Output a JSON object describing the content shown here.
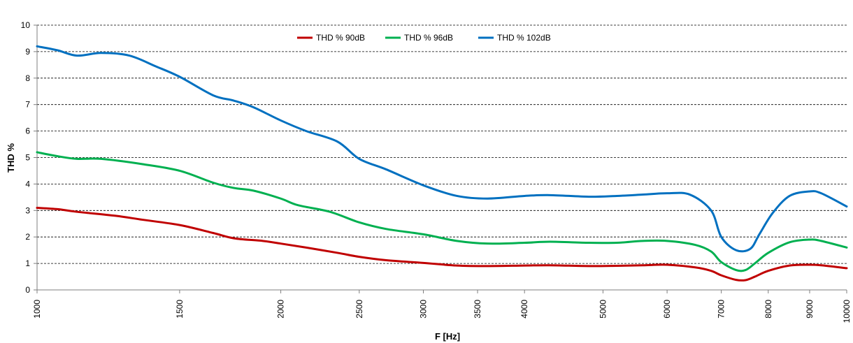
{
  "chart_data": {
    "type": "line",
    "title": "",
    "xlabel": "F [Hz]",
    "ylabel": "THD %",
    "xscale": "log",
    "xlim": [
      1000,
      10000
    ],
    "ylim": [
      0,
      10
    ],
    "grid": "horizontal dashed",
    "legend_position": "top-center",
    "x_ticks": [
      1000,
      1500,
      2000,
      2500,
      3000,
      3500,
      4000,
      5000,
      6000,
      7000,
      8000,
      9000,
      10000
    ],
    "x_tick_labels": [
      "1000",
      "1500",
      "2000",
      "2500",
      "3000",
      "3500",
      "4000",
      "5000",
      "6000",
      "7000",
      "8000",
      "9000",
      "10000"
    ],
    "y_ticks": [
      0,
      1,
      2,
      3,
      4,
      5,
      6,
      7,
      8,
      9,
      10
    ],
    "y_tick_labels": [
      "0",
      "1",
      "2",
      "3",
      "4",
      "5",
      "6",
      "7",
      "8",
      "9",
      "10"
    ],
    "series": [
      {
        "name": "THD % 90dB",
        "color": "#C00000",
        "points": [
          [
            1000,
            3.1
          ],
          [
            1060,
            3.05
          ],
          [
            1120,
            2.95
          ],
          [
            1250,
            2.8
          ],
          [
            1350,
            2.65
          ],
          [
            1500,
            2.45
          ],
          [
            1650,
            2.15
          ],
          [
            1750,
            1.95
          ],
          [
            1900,
            1.85
          ],
          [
            2000,
            1.75
          ],
          [
            2150,
            1.6
          ],
          [
            2350,
            1.4
          ],
          [
            2500,
            1.25
          ],
          [
            2700,
            1.12
          ],
          [
            3000,
            1.02
          ],
          [
            3300,
            0.92
          ],
          [
            3600,
            0.9
          ],
          [
            4000,
            0.92
          ],
          [
            4300,
            0.93
          ],
          [
            4800,
            0.9
          ],
          [
            5200,
            0.91
          ],
          [
            5600,
            0.93
          ],
          [
            6000,
            0.95
          ],
          [
            6500,
            0.85
          ],
          [
            6800,
            0.72
          ],
          [
            7000,
            0.55
          ],
          [
            7300,
            0.38
          ],
          [
            7500,
            0.37
          ],
          [
            7700,
            0.5
          ],
          [
            8000,
            0.72
          ],
          [
            8500,
            0.92
          ],
          [
            9000,
            0.95
          ],
          [
            9300,
            0.93
          ],
          [
            10000,
            0.82
          ]
        ]
      },
      {
        "name": "THD % 96dB",
        "color": "#00B050",
        "points": [
          [
            1000,
            5.2
          ],
          [
            1060,
            5.05
          ],
          [
            1120,
            4.95
          ],
          [
            1200,
            4.95
          ],
          [
            1350,
            4.75
          ],
          [
            1500,
            4.5
          ],
          [
            1650,
            4.05
          ],
          [
            1750,
            3.85
          ],
          [
            1850,
            3.75
          ],
          [
            2000,
            3.45
          ],
          [
            2100,
            3.2
          ],
          [
            2300,
            2.95
          ],
          [
            2500,
            2.55
          ],
          [
            2700,
            2.3
          ],
          [
            3000,
            2.1
          ],
          [
            3300,
            1.85
          ],
          [
            3600,
            1.75
          ],
          [
            4000,
            1.78
          ],
          [
            4300,
            1.82
          ],
          [
            4800,
            1.78
          ],
          [
            5200,
            1.78
          ],
          [
            5600,
            1.85
          ],
          [
            6000,
            1.85
          ],
          [
            6500,
            1.7
          ],
          [
            6800,
            1.45
          ],
          [
            7000,
            1.05
          ],
          [
            7300,
            0.75
          ],
          [
            7500,
            0.75
          ],
          [
            7700,
            1.0
          ],
          [
            8000,
            1.4
          ],
          [
            8500,
            1.8
          ],
          [
            9000,
            1.9
          ],
          [
            9300,
            1.85
          ],
          [
            10000,
            1.6
          ]
        ]
      },
      {
        "name": "THD % 102dB",
        "color": "#0070C0",
        "points": [
          [
            1000,
            9.2
          ],
          [
            1060,
            9.05
          ],
          [
            1120,
            8.85
          ],
          [
            1200,
            8.95
          ],
          [
            1300,
            8.85
          ],
          [
            1400,
            8.45
          ],
          [
            1500,
            8.05
          ],
          [
            1650,
            7.35
          ],
          [
            1750,
            7.15
          ],
          [
            1850,
            6.9
          ],
          [
            2000,
            6.4
          ],
          [
            2150,
            6.0
          ],
          [
            2350,
            5.6
          ],
          [
            2500,
            4.95
          ],
          [
            2700,
            4.55
          ],
          [
            3000,
            3.95
          ],
          [
            3300,
            3.55
          ],
          [
            3600,
            3.45
          ],
          [
            4000,
            3.55
          ],
          [
            4300,
            3.58
          ],
          [
            4800,
            3.52
          ],
          [
            5200,
            3.55
          ],
          [
            5600,
            3.6
          ],
          [
            6000,
            3.65
          ],
          [
            6400,
            3.6
          ],
          [
            6800,
            3.0
          ],
          [
            7000,
            2.0
          ],
          [
            7300,
            1.5
          ],
          [
            7600,
            1.55
          ],
          [
            7800,
            2.1
          ],
          [
            8100,
            2.9
          ],
          [
            8500,
            3.55
          ],
          [
            9000,
            3.72
          ],
          [
            9300,
            3.65
          ],
          [
            10000,
            3.15
          ]
        ]
      }
    ]
  }
}
